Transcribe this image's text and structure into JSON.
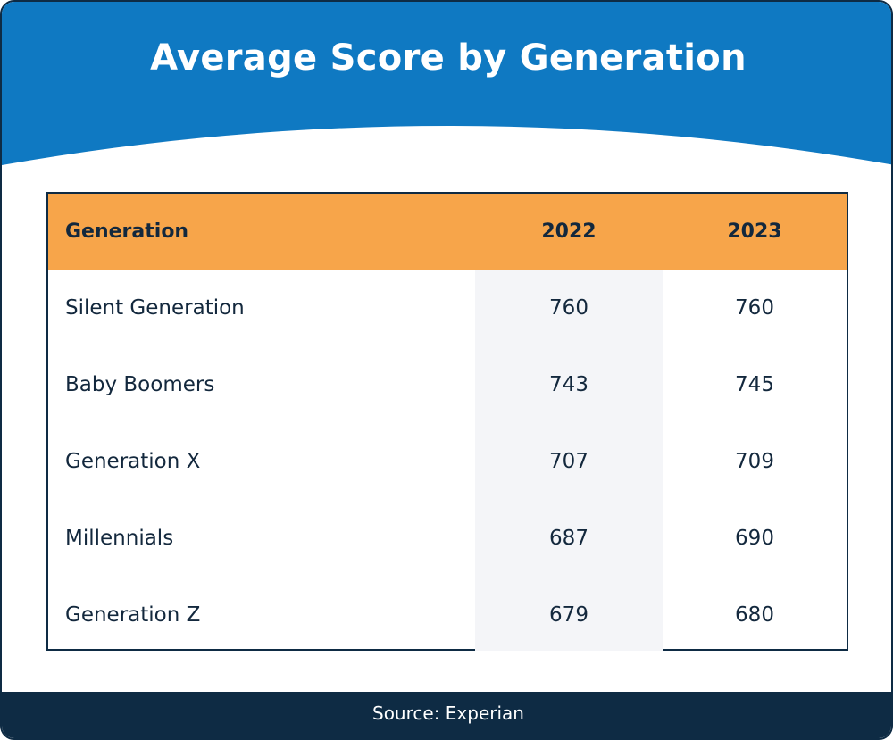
{
  "colors": {
    "header_blue": "#0f79c2",
    "table_header_orange": "#f7a54a",
    "shaded_column": "#f4f5f8",
    "footer_navy": "#0e2b44",
    "text_dark": "#13283d"
  },
  "chart_data": {
    "type": "table",
    "title": "Average Score by Generation",
    "columns": [
      "Generation",
      "2022",
      "2023"
    ],
    "rows": [
      {
        "generation": "Silent Generation",
        "y2022": "760",
        "y2023": "760"
      },
      {
        "generation": "Baby Boomers",
        "y2022": "743",
        "y2023": "745"
      },
      {
        "generation": "Generation X",
        "y2022": "707",
        "y2023": "709"
      },
      {
        "generation": "Millennials",
        "y2022": "687",
        "y2023": "690"
      },
      {
        "generation": "Generation Z",
        "y2022": "679",
        "y2023": "680"
      }
    ],
    "source": "Source: Experian"
  }
}
